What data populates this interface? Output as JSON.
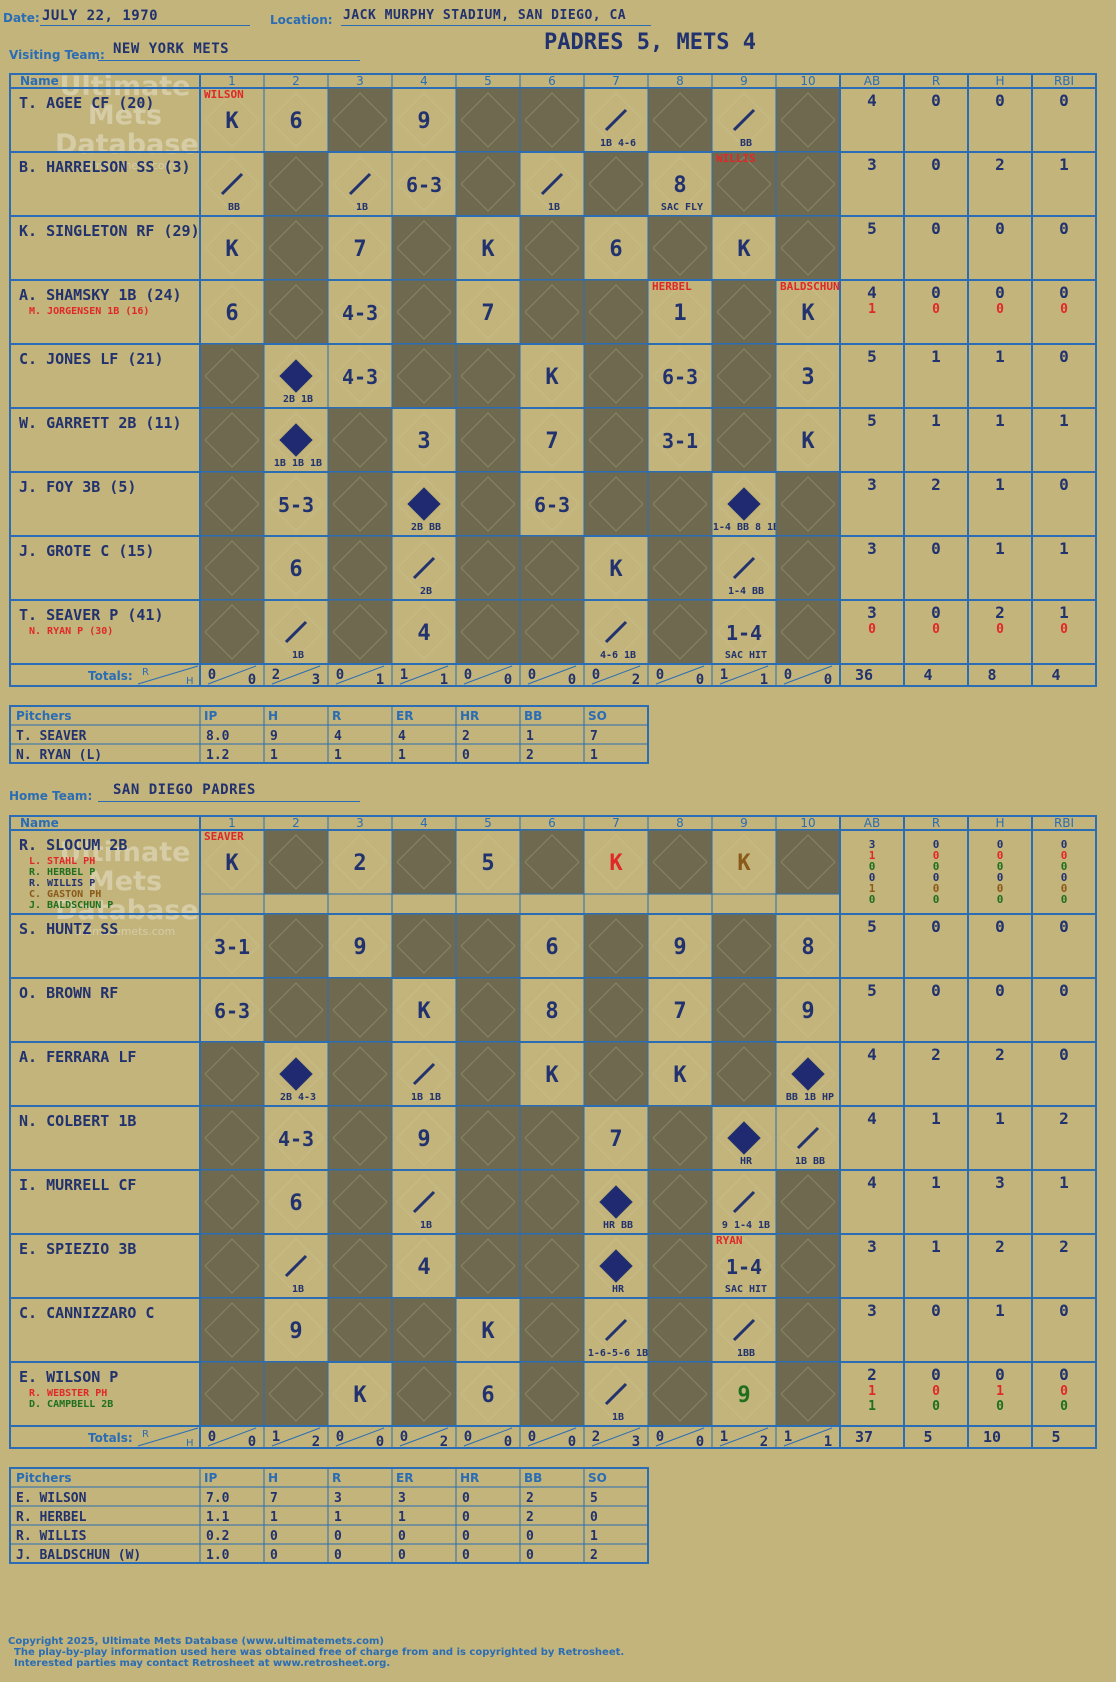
{
  "game": {
    "date_label": "Date:",
    "date": "JULY 22, 1970",
    "location_label": "Location:",
    "location": "JACK MURPHY STADIUM, SAN DIEGO, CA",
    "title": "PADRES 5, METS 4"
  },
  "watermark": {
    "line1": "Ultimate",
    "line2": "Mets",
    "line3": "Database",
    "url": "ultimatemets.com"
  },
  "visitor": {
    "team_label": "Visiting Team:",
    "team": "NEW YORK METS",
    "innings": [
      "1",
      "2",
      "3",
      "4",
      "5",
      "6",
      "7",
      "8",
      "9",
      "10"
    ],
    "stat_headers": [
      "AB",
      "R",
      "H",
      "RBI"
    ],
    "name_header": "Name",
    "totals_label": "Totals:",
    "totals_r_label": "R",
    "totals_h_label": "H",
    "inning_totals": [
      [
        "0",
        "0"
      ],
      [
        "2",
        "3"
      ],
      [
        "0",
        "1"
      ],
      [
        "1",
        "1"
      ],
      [
        "0",
        "0"
      ],
      [
        "0",
        "0"
      ],
      [
        "0",
        "2"
      ],
      [
        "0",
        "0"
      ],
      [
        "1",
        "1"
      ],
      [
        "0",
        "0"
      ]
    ],
    "game_totals": [
      "36",
      "4",
      "8",
      "4"
    ],
    "rows": [
      {
        "name": "T. AGEE CF (20)",
        "subs": [],
        "stats": [
          [
            "4",
            "0",
            "0",
            "0"
          ]
        ],
        "note": "WILSON",
        "note_inning": 1
      },
      {
        "name": "B. HARRELSON SS (3)",
        "subs": [],
        "stats": [
          [
            "3",
            "0",
            "2",
            "1"
          ]
        ],
        "note": "WILLIS",
        "note_inning": 9
      },
      {
        "name": "K. SINGLETON RF (29)",
        "subs": [],
        "stats": [
          [
            "5",
            "0",
            "0",
            "0"
          ]
        ]
      },
      {
        "name": "A. SHAMSKY 1B (24)",
        "subs": [
          "M. JORGENSEN 1B (16)"
        ],
        "stats": [
          [
            "4",
            "0",
            "0",
            "0"
          ],
          [
            "1",
            "0",
            "0",
            "0"
          ]
        ],
        "note": "HERBEL",
        "note_inning": 8,
        "note2": "BALDSCHUN",
        "note2_inning": 10
      },
      {
        "name": "C. JONES LF (21)",
        "subs": [],
        "stats": [
          [
            "5",
            "1",
            "1",
            "0"
          ]
        ]
      },
      {
        "name": "W. GARRETT 2B (11)",
        "subs": [],
        "stats": [
          [
            "5",
            "1",
            "1",
            "1"
          ]
        ]
      },
      {
        "name": "J. FOY 3B (5)",
        "subs": [],
        "stats": [
          [
            "3",
            "2",
            "1",
            "0"
          ]
        ]
      },
      {
        "name": "J. GROTE C (15)",
        "subs": [],
        "stats": [
          [
            "3",
            "0",
            "1",
            "1"
          ]
        ]
      },
      {
        "name": "T. SEAVER P (41)",
        "subs": [
          "N. RYAN P (30)"
        ],
        "stats": [
          [
            "3",
            "0",
            "2",
            "1"
          ],
          [
            "0",
            "0",
            "0",
            "0"
          ]
        ]
      }
    ],
    "plays": [
      [
        [
          "K",
          ""
        ],
        [
          "6",
          ""
        ],
        null,
        [
          "9",
          ""
        ],
        null,
        null,
        [
          "",
          "1B 4-6"
        ],
        null,
        [
          "",
          "BB"
        ],
        null
      ],
      [
        [
          "",
          "BB"
        ],
        null,
        [
          "",
          "1B"
        ],
        [
          "6-3",
          ""
        ],
        null,
        [
          "",
          "1B"
        ],
        null,
        [
          "8",
          "SAC FLY"
        ],
        null,
        null
      ],
      [
        [
          "K",
          ""
        ],
        null,
        [
          "7",
          ""
        ],
        null,
        [
          "K",
          ""
        ],
        null,
        [
          "6",
          ""
        ],
        null,
        [
          "K",
          ""
        ],
        null
      ],
      [
        [
          "6",
          ""
        ],
        null,
        [
          "4-3",
          ""
        ],
        null,
        [
          "7",
          ""
        ],
        null,
        null,
        [
          "1",
          ""
        ],
        null,
        [
          "K",
          ""
        ]
      ],
      [
        null,
        [
          "R",
          "2B 1B"
        ],
        [
          "4-3",
          ""
        ],
        null,
        null,
        [
          "K",
          ""
        ],
        null,
        [
          "6-3",
          ""
        ],
        null,
        [
          "3",
          ""
        ]
      ],
      [
        null,
        [
          "R",
          "1B 1B 1B"
        ],
        null,
        [
          "3",
          ""
        ],
        null,
        [
          "7",
          ""
        ],
        null,
        [
          "3-1",
          ""
        ],
        null,
        [
          "K",
          ""
        ]
      ],
      [
        null,
        [
          "5-3",
          ""
        ],
        null,
        [
          "R",
          "2B BB"
        ],
        null,
        [
          "6-3",
          ""
        ],
        null,
        null,
        [
          "R",
          "1-4 BB 8 1B"
        ],
        null
      ],
      [
        null,
        [
          "6",
          ""
        ],
        null,
        [
          "",
          "2B"
        ],
        null,
        null,
        [
          "K",
          ""
        ],
        null,
        [
          "",
          "1-4 BB"
        ],
        null
      ],
      [
        null,
        [
          "",
          "1B"
        ],
        null,
        [
          "4",
          ""
        ],
        null,
        null,
        [
          "",
          "4-6 1B"
        ],
        null,
        [
          "1-4",
          "SAC HIT"
        ],
        null
      ]
    ],
    "pitchers_header": [
      "Pitchers",
      "IP",
      "H",
      "R",
      "ER",
      "HR",
      "BB",
      "SO"
    ],
    "pitchers": [
      [
        "T. SEAVER",
        "8.0",
        "9",
        "4",
        "4",
        "2",
        "1",
        "7"
      ],
      [
        "N. RYAN (L)",
        "1.2",
        "1",
        "1",
        "1",
        "0",
        "2",
        "1"
      ]
    ]
  },
  "home": {
    "team_label": "Home Team:",
    "team": "SAN DIEGO PADRES",
    "innings": [
      "1",
      "2",
      "3",
      "4",
      "5",
      "6",
      "7",
      "8",
      "9",
      "10"
    ],
    "stat_headers": [
      "AB",
      "R",
      "H",
      "RBI"
    ],
    "name_header": "Name",
    "totals_label": "Totals:",
    "totals_r_label": "R",
    "totals_h_label": "H",
    "inning_totals": [
      [
        "0",
        "0"
      ],
      [
        "1",
        "2"
      ],
      [
        "0",
        "0"
      ],
      [
        "0",
        "2"
      ],
      [
        "0",
        "0"
      ],
      [
        "0",
        "0"
      ],
      [
        "2",
        "3"
      ],
      [
        "0",
        "0"
      ],
      [
        "1",
        "2"
      ],
      [
        "1",
        "1"
      ]
    ],
    "game_totals": [
      "37",
      "5",
      "10",
      "5"
    ],
    "rows": [
      {
        "name": "R. SLOCUM 2B",
        "subs": [
          "L. STAHL PH",
          "R. HERBEL P",
          "R. WILLIS P",
          "C. GASTON PH",
          "J. BALDSCHUN P"
        ],
        "stats": [
          [
            "3",
            "0",
            "0",
            "0"
          ],
          [
            "1",
            "0",
            "0",
            "0"
          ],
          [
            "0",
            "0",
            "0",
            "0"
          ],
          [
            "0",
            "0",
            "0",
            "0"
          ],
          [
            "1",
            "0",
            "0",
            "0"
          ],
          [
            "0",
            "0",
            "0",
            "0"
          ]
        ],
        "note": "SEAVER",
        "note_inning": 1
      },
      {
        "name": "S. HUNTZ SS",
        "subs": [],
        "stats": [
          [
            "5",
            "0",
            "0",
            "0"
          ]
        ]
      },
      {
        "name": "O. BROWN RF",
        "subs": [],
        "stats": [
          [
            "5",
            "0",
            "0",
            "0"
          ]
        ]
      },
      {
        "name": "A. FERRARA LF",
        "subs": [],
        "stats": [
          [
            "4",
            "2",
            "2",
            "0"
          ]
        ]
      },
      {
        "name": "N. COLBERT 1B",
        "subs": [],
        "stats": [
          [
            "4",
            "1",
            "1",
            "2"
          ]
        ]
      },
      {
        "name": "I. MURRELL CF",
        "subs": [],
        "stats": [
          [
            "4",
            "1",
            "3",
            "1"
          ]
        ]
      },
      {
        "name": "E. SPIEZIO 3B",
        "subs": [],
        "stats": [
          [
            "3",
            "1",
            "2",
            "2"
          ]
        ],
        "note": "RYAN",
        "note_inning": 9
      },
      {
        "name": "C. CANNIZZARO C",
        "subs": [],
        "stats": [
          [
            "3",
            "0",
            "1",
            "0"
          ]
        ]
      },
      {
        "name": "E. WILSON P",
        "subs": [
          "R. WEBSTER PH",
          "D. CAMPBELL 2B"
        ],
        "stats": [
          [
            "2",
            "0",
            "0",
            "0"
          ],
          [
            "1",
            "0",
            "1",
            "0"
          ],
          [
            "1",
            "0",
            "0",
            "0"
          ]
        ]
      }
    ],
    "plays": [
      [
        [
          "K",
          ""
        ],
        null,
        [
          "2",
          ""
        ],
        null,
        [
          "5",
          ""
        ],
        null,
        [
          "K",
          ""
        ],
        null,
        [
          "K",
          ""
        ],
        null
      ],
      [
        [
          "3-1",
          ""
        ],
        null,
        [
          "9",
          ""
        ],
        null,
        null,
        [
          "6",
          ""
        ],
        null,
        [
          "9",
          ""
        ],
        null,
        [
          "8",
          ""
        ]
      ],
      [
        [
          "6-3",
          ""
        ],
        null,
        null,
        [
          "K",
          ""
        ],
        null,
        [
          "8",
          ""
        ],
        null,
        [
          "7",
          ""
        ],
        null,
        [
          "9",
          ""
        ]
      ],
      [
        null,
        [
          "R",
          "2B 4-3"
        ],
        null,
        [
          "",
          "1B 1B"
        ],
        null,
        [
          "K",
          ""
        ],
        null,
        [
          "K",
          ""
        ],
        null,
        [
          "R",
          "BB 1B HP"
        ]
      ],
      [
        null,
        [
          "4-3",
          ""
        ],
        null,
        [
          "9",
          ""
        ],
        null,
        null,
        [
          "7",
          ""
        ],
        null,
        [
          "R",
          "HR"
        ],
        [
          "",
          "1B BB"
        ]
      ],
      [
        null,
        [
          "6",
          ""
        ],
        null,
        [
          "",
          "1B"
        ],
        null,
        null,
        [
          "R",
          "HR BB"
        ],
        null,
        [
          "",
          "9 1-4 1B"
        ],
        null
      ],
      [
        null,
        [
          "",
          "1B"
        ],
        null,
        [
          "4",
          ""
        ],
        null,
        null,
        [
          "R",
          "HR"
        ],
        null,
        [
          "1-4",
          "SAC HIT"
        ],
        null
      ],
      [
        null,
        [
          "9",
          ""
        ],
        null,
        null,
        [
          "K",
          ""
        ],
        null,
        [
          "",
          "1-6-5-6 1B"
        ],
        null,
        [
          "",
          "1BB"
        ],
        null
      ],
      [
        null,
        null,
        [
          "K",
          ""
        ],
        null,
        [
          "6",
          ""
        ],
        null,
        [
          "",
          "1B"
        ],
        null,
        [
          "9",
          ""
        ],
        null
      ]
    ],
    "pitchers_header": [
      "Pitchers",
      "IP",
      "H",
      "R",
      "ER",
      "HR",
      "BB",
      "SO"
    ],
    "pitchers": [
      [
        "E. WILSON",
        "7.0",
        "7",
        "3",
        "3",
        "0",
        "2",
        "5"
      ],
      [
        "R. HERBEL",
        "1.1",
        "1",
        "1",
        "1",
        "0",
        "2",
        "0"
      ],
      [
        "R. WILLIS",
        "0.2",
        "0",
        "0",
        "0",
        "0",
        "0",
        "1"
      ],
      [
        "J. BALDSCHUN (W)",
        "1.0",
        "0",
        "0",
        "0",
        "0",
        "0",
        "2"
      ]
    ]
  },
  "colors": {
    "bg": "#c2b47b",
    "grid": "#2a6db5",
    "dark": "#6f6a4f",
    "ink": "#22326e",
    "red": "#e02828",
    "green": "#1f6f1f",
    "brown": "#8a5a1a"
  },
  "footer": {
    "line1": "Copyright 2025, Ultimate Mets Database (www.ultimatemets.com)",
    "line2": "The play-by-play information used here was obtained free of charge from and is copyrighted by Retrosheet.",
    "line3": "Interested parties may contact Retrosheet at www.retrosheet.org."
  }
}
